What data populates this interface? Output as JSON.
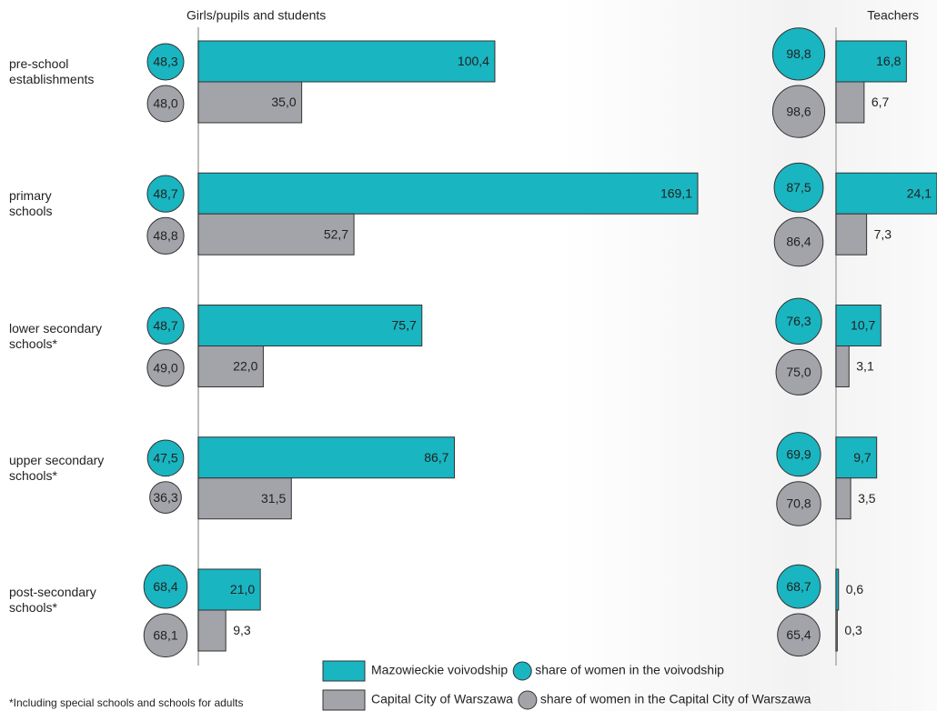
{
  "chart_data": [
    {
      "type": "bar",
      "orientation": "horizontal",
      "title": "Girls/pupils and students",
      "categories": [
        "pre-school\nestablishments",
        "primary\nschools",
        "lower secondary\nschools*",
        "upper secondary\nschools*",
        "post-secondary\nschools*"
      ],
      "series": [
        {
          "name": "Mazowieckie voivodship",
          "color": "#19b5c1",
          "values": [
            100.4,
            169.1,
            75.7,
            86.7,
            21.0
          ],
          "value_labels": [
            "100,4",
            "169,1",
            "75,7",
            "86,7",
            "21,0"
          ]
        },
        {
          "name": "Capital City of Warszawa",
          "color": "#a3a3aa",
          "values": [
            35.0,
            52.7,
            22.0,
            31.5,
            9.3
          ],
          "value_labels": [
            "35,0",
            "52,7",
            "22,0",
            "31,5",
            "9,3"
          ]
        }
      ],
      "shares": [
        {
          "name": "share of women in the voivodship",
          "color": "#19b5c1",
          "values": [
            48.3,
            48.7,
            48.7,
            47.5,
            68.4
          ],
          "value_labels": [
            "48,3",
            "48,7",
            "48,7",
            "47,5",
            "68,4"
          ]
        },
        {
          "name": "share of women in the Capital City of Warszawa",
          "color": "#a3a3aa",
          "values": [
            48.0,
            48.8,
            49.0,
            36.3,
            68.1
          ],
          "value_labels": [
            "48,0",
            "48,8",
            "49,0",
            "36,3",
            "68,1"
          ]
        }
      ]
    },
    {
      "type": "bar",
      "orientation": "horizontal",
      "title": "Teachers",
      "series": [
        {
          "color": "#19b5c1",
          "values": [
            16.8,
            24.1,
            10.7,
            9.7,
            0.6
          ],
          "value_labels": [
            "16,8",
            "24,1",
            "10,7",
            "9,7",
            "0,6"
          ]
        },
        {
          "color": "#a3a3aa",
          "values": [
            6.7,
            7.3,
            3.1,
            3.5,
            0.3
          ],
          "value_labels": [
            "6,7",
            "7,3",
            "3,1",
            "3,5",
            "0,3"
          ]
        }
      ],
      "shares": [
        {
          "color": "#19b5c1",
          "values": [
            98.8,
            87.5,
            76.3,
            69.9,
            68.7
          ],
          "value_labels": [
            "98,8",
            "87,5",
            "76,3",
            "69,9",
            "68,7"
          ]
        },
        {
          "color": "#a3a3aa",
          "values": [
            98.6,
            86.4,
            75.0,
            70.8,
            65.4
          ],
          "value_labels": [
            "98,6",
            "86,4",
            "75,0",
            "70,8",
            "65,4"
          ]
        }
      ]
    }
  ],
  "footnote": "*Including special schools and schools for adults"
}
